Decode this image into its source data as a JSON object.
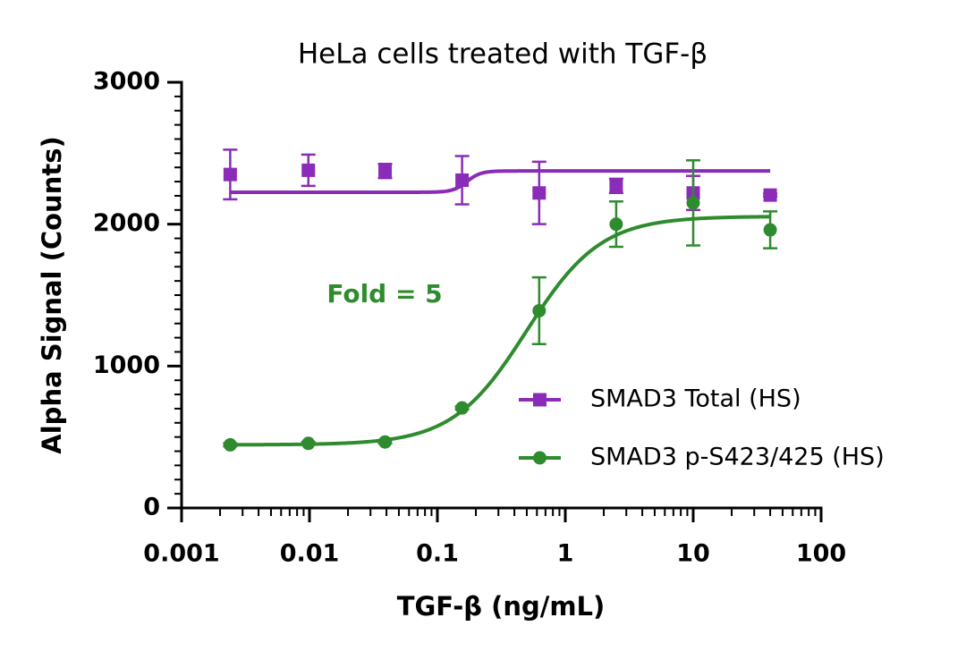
{
  "chart_data": {
    "type": "dose-response",
    "title": "HeLa cells treated with TGF-β",
    "x_label": "TGF-β (ng/mL)",
    "y_label": "Alpha Signal (Counts)",
    "x_scale": "log",
    "xlim": [
      0.001,
      100
    ],
    "xticks": [
      0.001,
      0.01,
      0.1,
      1,
      10,
      100
    ],
    "ylim": [
      0,
      3000
    ],
    "yticks": [
      0,
      1000,
      2000,
      3000
    ],
    "minor_ticks": true,
    "legend": "lower right",
    "annotation": {
      "text": "Fold = 5",
      "color": "#2e8b2e"
    },
    "x": [
      0.0024,
      0.0098,
      0.039,
      0.156,
      0.625,
      2.5,
      10,
      40
    ],
    "series": [
      {
        "name": "SMAD3 Total (HS)",
        "color": "#8a2cb8",
        "marker": "square",
        "values": [
          2350,
          2380,
          2375,
          2310,
          2220,
          2270,
          2220,
          2205
        ],
        "errors": [
          175,
          110,
          50,
          170,
          220,
          50,
          120,
          10
        ],
        "fit": {
          "bottom": 2225,
          "top": 2375,
          "ec50": 0.17,
          "hill": 8
        }
      },
      {
        "name": "SMAD3 p-S423/425 (HS)",
        "color": "#2e8b2e",
        "marker": "circle",
        "values": [
          445,
          455,
          465,
          705,
          1390,
          2000,
          2150,
          1960
        ],
        "errors": [
          10,
          10,
          10,
          10,
          235,
          160,
          300,
          130
        ],
        "fit": {
          "bottom": 445,
          "top": 2055,
          "ec50": 0.5,
          "hill": 1.5
        }
      }
    ]
  }
}
